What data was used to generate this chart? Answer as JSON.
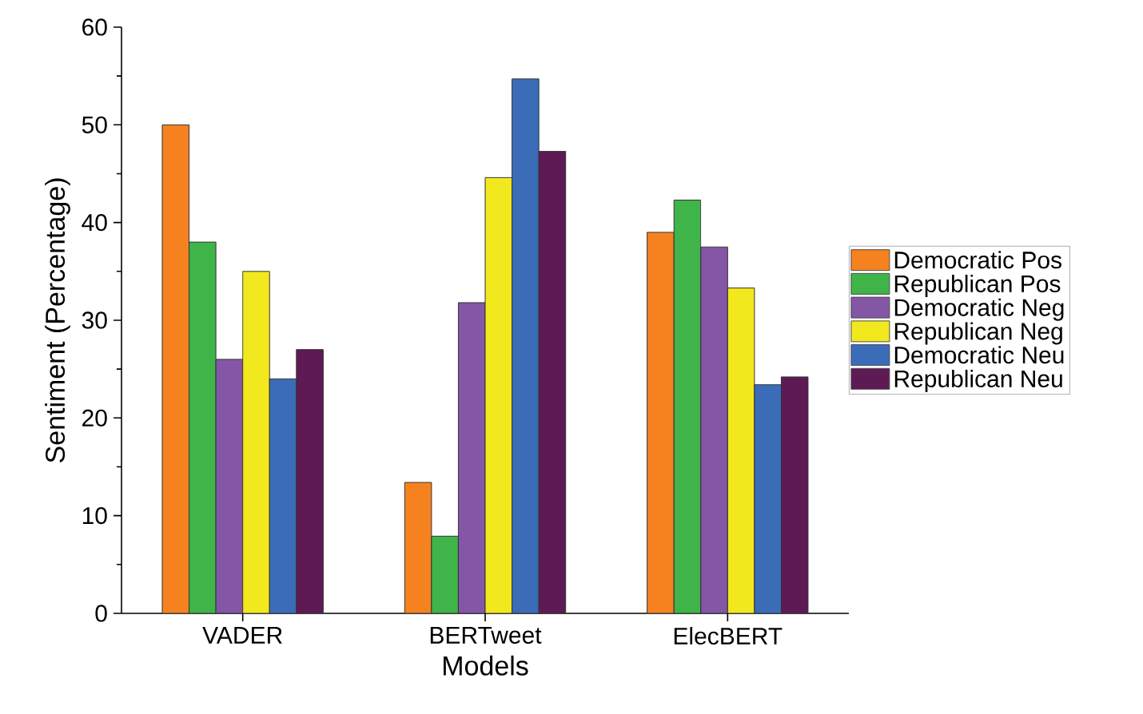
{
  "chart_data": {
    "type": "bar",
    "xlabel": "Models",
    "ylabel": "Sentiment (Percentage)",
    "categories": [
      "VADER",
      "BERTweet",
      "ElecBERT"
    ],
    "series": [
      {
        "name": "Democratic Pos",
        "color": "#f5821f",
        "values": [
          50,
          13.4,
          39.0
        ]
      },
      {
        "name": "Republican Pos",
        "color": "#3fb449",
        "values": [
          38,
          7.9,
          42.3
        ]
      },
      {
        "name": "Democratic Neg",
        "color": "#8456a6",
        "values": [
          26,
          31.8,
          37.5
        ]
      },
      {
        "name": "Republican Neg",
        "color": "#f2e81e",
        "values": [
          35,
          44.6,
          33.3
        ]
      },
      {
        "name": "Democratic Neu",
        "color": "#3a6cb8",
        "values": [
          24,
          54.7,
          23.4
        ]
      },
      {
        "name": "Republican Neu",
        "color": "#5e1a55",
        "values": [
          27,
          47.3,
          24.2
        ]
      }
    ],
    "ylim": [
      0,
      60
    ],
    "yticks": [
      0,
      10,
      20,
      30,
      40,
      50,
      60
    ],
    "grid": false,
    "legend": "right"
  }
}
